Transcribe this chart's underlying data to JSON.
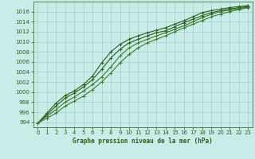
{
  "xlabel": "Graphe pression niveau de la mer (hPa)",
  "xlim": [
    -0.5,
    23.5
  ],
  "ylim": [
    993.0,
    1018.0
  ],
  "yticks": [
    994,
    996,
    998,
    1000,
    1002,
    1004,
    1006,
    1008,
    1010,
    1012,
    1014,
    1016
  ],
  "xticks": [
    0,
    1,
    2,
    3,
    4,
    5,
    6,
    7,
    8,
    9,
    10,
    11,
    12,
    13,
    14,
    15,
    16,
    17,
    18,
    19,
    20,
    21,
    22,
    23
  ],
  "bg_color": "#c8ede8",
  "grid_color": "#a0cfc8",
  "line_color_main": "#2d5a1b",
  "line_color_light": "#3d7a2b",
  "series": [
    [
      993.8,
      995.8,
      997.8,
      999.3,
      1000.2,
      1001.5,
      1003.2,
      1005.8,
      1008.0,
      1009.5,
      1010.5,
      1011.2,
      1011.8,
      1012.3,
      1012.8,
      1013.5,
      1014.2,
      1015.0,
      1015.8,
      1016.2,
      1016.5,
      1016.8,
      1017.0,
      1017.2
    ],
    [
      993.8,
      995.5,
      997.2,
      998.8,
      999.8,
      1001.0,
      1002.5,
      1004.5,
      1006.8,
      1008.5,
      1009.8,
      1010.5,
      1011.2,
      1011.8,
      1012.2,
      1013.0,
      1013.8,
      1014.5,
      1015.2,
      1015.8,
      1016.2,
      1016.5,
      1016.8,
      1017.0
    ],
    [
      993.8,
      995.2,
      996.5,
      998.0,
      999.0,
      1000.2,
      1001.5,
      1003.0,
      1005.0,
      1007.2,
      1008.8,
      1009.8,
      1010.5,
      1011.2,
      1011.8,
      1012.5,
      1013.2,
      1014.0,
      1014.8,
      1015.5,
      1016.0,
      1016.3,
      1016.6,
      1016.9
    ],
    [
      993.8,
      994.8,
      995.8,
      997.2,
      998.2,
      999.2,
      1000.5,
      1002.0,
      1003.8,
      1005.8,
      1007.5,
      1008.8,
      1009.8,
      1010.5,
      1011.2,
      1012.0,
      1012.8,
      1013.5,
      1014.2,
      1015.0,
      1015.5,
      1016.0,
      1016.4,
      1016.8
    ]
  ],
  "marker": "+",
  "marker_size": 3,
  "line_width": 0.8,
  "font_color": "#2d5a1b",
  "tick_fontsize": 5,
  "label_fontsize": 5.5
}
